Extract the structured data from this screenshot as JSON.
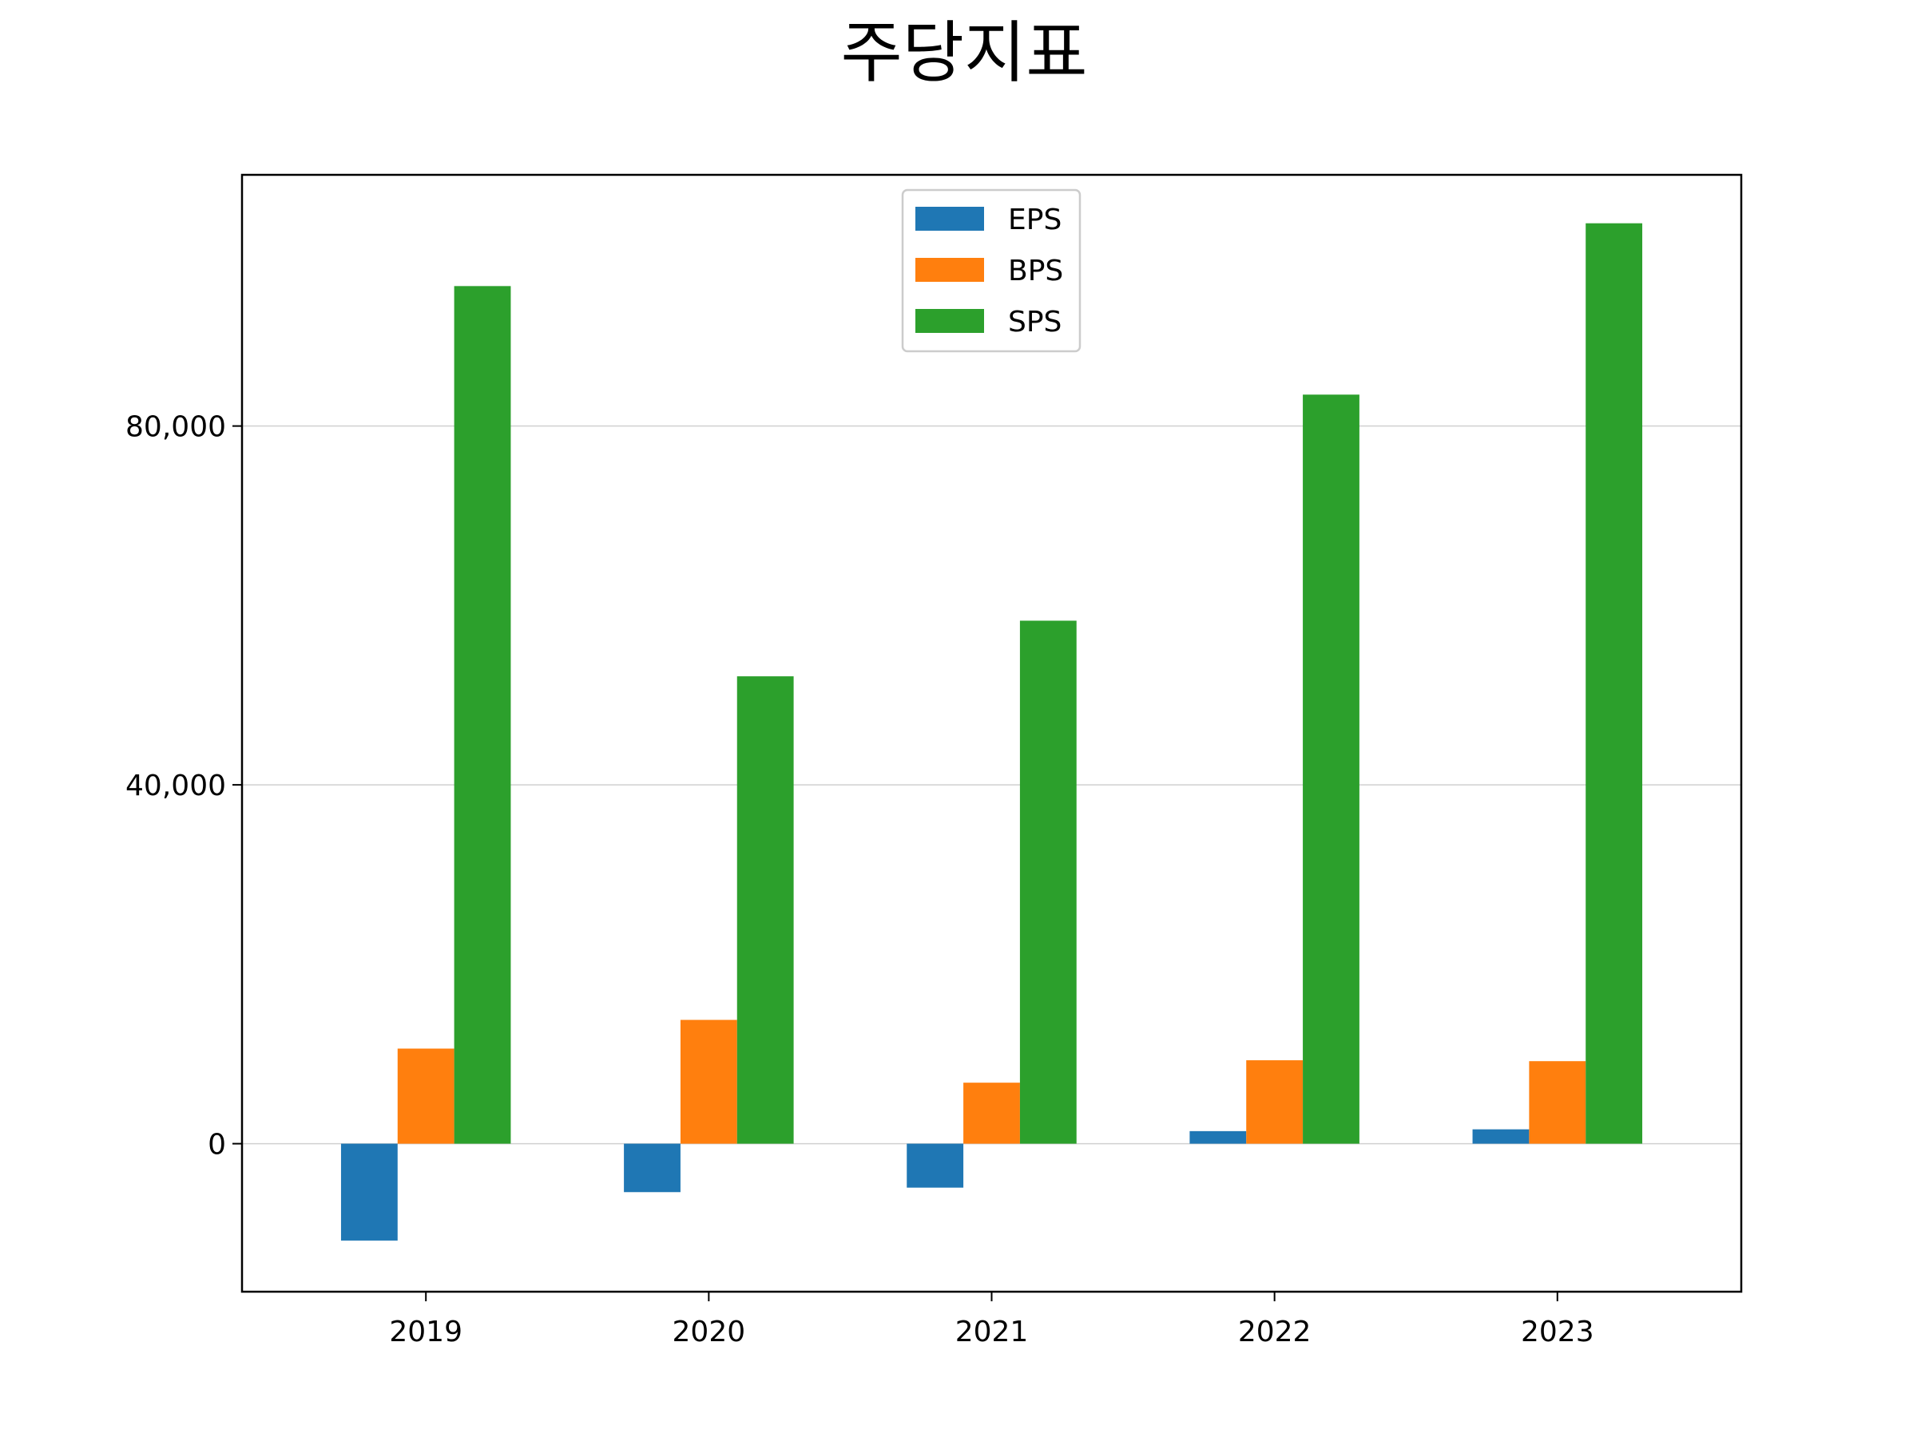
{
  "chart_data": {
    "type": "bar",
    "title": "주당지표",
    "xlabel": "",
    "ylabel": "",
    "categories": [
      "2019",
      "2020",
      "2021",
      "2022",
      "2023"
    ],
    "series": [
      {
        "name": "EPS",
        "color": "#1f77b4",
        "values": [
          -10800,
          -5400,
          -4900,
          1400,
          1600
        ]
      },
      {
        "name": "BPS",
        "color": "#ff7f0e",
        "values": [
          10600,
          13800,
          6800,
          9300,
          9200
        ]
      },
      {
        "name": "SPS",
        "color": "#2ca02c",
        "values": [
          95600,
          52100,
          58300,
          83500,
          102600
        ]
      }
    ],
    "ylim": [
      -16500,
      108000
    ],
    "yticks": [
      0,
      40000,
      80000
    ],
    "ytick_labels": [
      "0",
      "40,000",
      "80,000"
    ],
    "grid": "horizontal",
    "legend_position": "top-center"
  }
}
